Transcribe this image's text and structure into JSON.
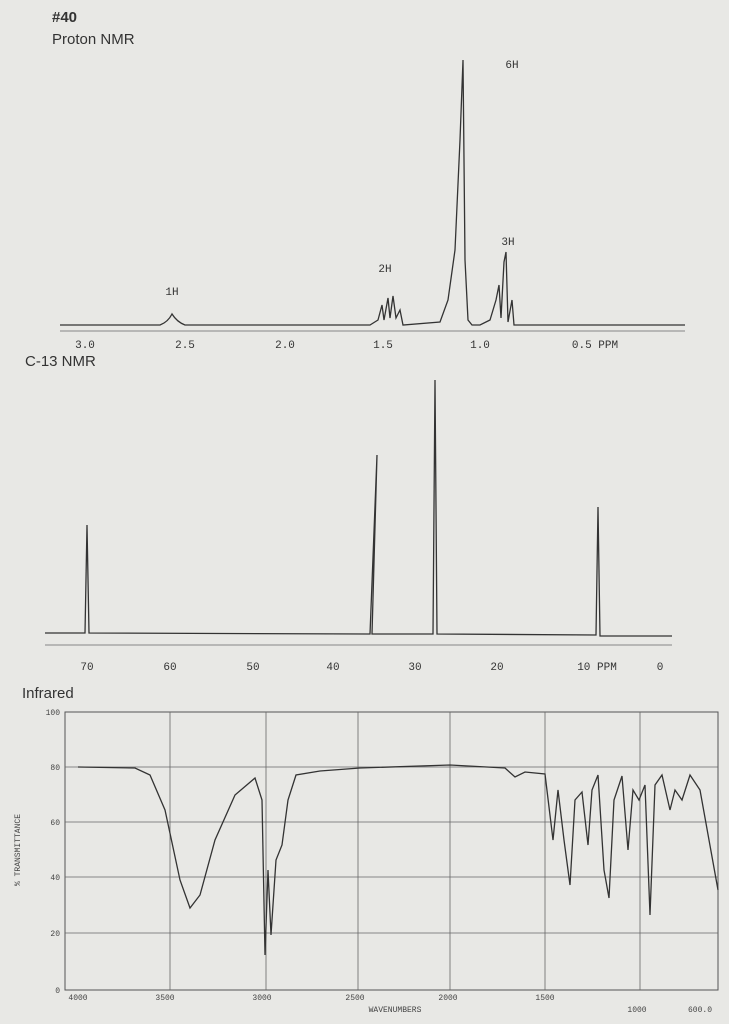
{
  "header": {
    "number": "#40",
    "title": "Proton NMR"
  },
  "proton_nmr": {
    "axis_labels": [
      "3.0",
      "2.5",
      "2.0",
      "1.5",
      "1.0",
      "0.5 PPM"
    ],
    "peak_labels": [
      "1H",
      "2H",
      "6H",
      "3H"
    ]
  },
  "c13_nmr": {
    "title": "C-13 NMR",
    "axis_labels": [
      "70",
      "60",
      "50",
      "40",
      "30",
      "20",
      "10 PPM",
      "0"
    ]
  },
  "infrared": {
    "title": "Infrared",
    "y_axis_title": "% TRANSMITTANCE",
    "y_labels": [
      "100",
      "80",
      "60",
      "40",
      "20",
      "0"
    ],
    "x_labels": [
      "4000",
      "3500",
      "3000",
      "2500",
      "2000",
      "1500",
      "1000",
      "600.0"
    ],
    "x_axis_title": "WAVENUMBERS"
  }
}
